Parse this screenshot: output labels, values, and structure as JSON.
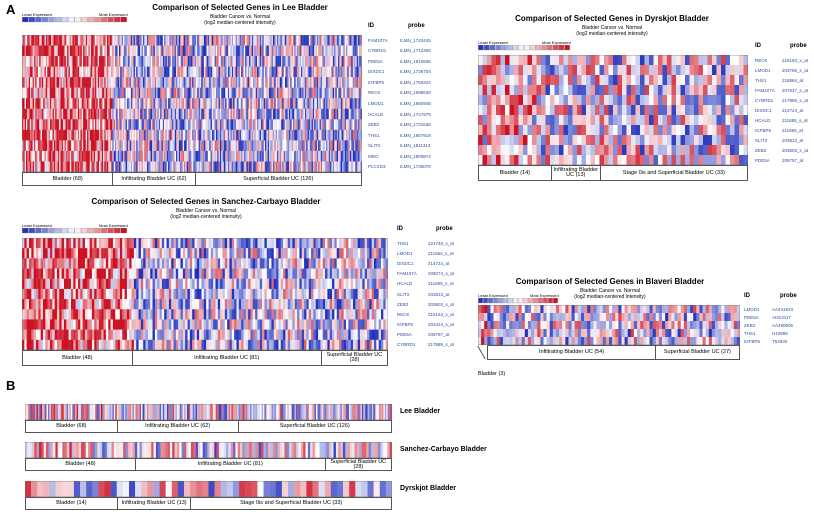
{
  "panels": {
    "a": "A",
    "b": "B"
  },
  "legend": {
    "least": "Least Expressed",
    "most": "Most Expressed"
  },
  "headers": {
    "id": "ID",
    "probe": "probe"
  },
  "subtitle": [
    "Bladder Cancer vs. Normal",
    "(log2 median-centered intensity)"
  ],
  "chart_data": [
    {
      "type": "heatmap",
      "title": "Comparison of Selected Genes in Lee Bladder",
      "colors": {
        "low": "#2233bb",
        "mid": "#ffffff",
        "high": "#cc1122"
      },
      "genes": [
        "FAM107A",
        "CYBRD1",
        "PDE5A",
        "DIXDC1",
        "IGFBP5",
        "RECK",
        "LMOD1",
        "HCALD",
        "ZEB2",
        "THS1",
        "SLIT3",
        "MRO",
        "PLCXD3"
      ],
      "probes": [
        "ILMN_1743445",
        "ILMN_1712305",
        "ILMN_1810836",
        "ILMN_1736704",
        "ILMN_1750324",
        "ILMN_1688630",
        "ILMN_1680948",
        "ILMN_1747979",
        "ILMN_1731538",
        "ILMN_1807919",
        "ILMN_1811313",
        "ILMN_1800874",
        "ILMN_1736070"
      ],
      "groups": [
        {
          "label": "Bladder (68)",
          "n": 68
        },
        {
          "label": "Infiltrating Bladder UC (62)",
          "n": 62
        },
        {
          "label": "Superficial Bladder UC (126)",
          "n": 126
        }
      ]
    },
    {
      "type": "heatmap",
      "title": "Comparison of Selected Genes in Dyrskjot Bladder",
      "genes": [
        "RECK",
        "LMOD1",
        "THS1",
        "FAM107A",
        "CYBRD1",
        "DIXDC1",
        "HCALD",
        "IGFBP5",
        "SLIT3",
        "ZEB2",
        "PDE5A"
      ],
      "probes": [
        "216153_x_at",
        "203766_s_at",
        "218864_at",
        "207547_s_at",
        "217889_s_at",
        "214724_at",
        "211685_s_at",
        "211959_at",
        "203812_at",
        "203603_s_at",
        "206757_at"
      ],
      "groups": [
        {
          "label": "Bladder (14)",
          "n": 14
        },
        {
          "label": "Infiltrating Bladder UC (13)",
          "n": 13
        },
        {
          "label": "Stage 0is and Superficial Bladder UC (33)",
          "n": 33
        }
      ]
    },
    {
      "type": "heatmap",
      "title": "Comparison of Selected Genes in Sanchez-Carbayo Bladder",
      "genes": [
        "THS1",
        "LMOD1",
        "DIXDC1",
        "FAM107A",
        "HCALD",
        "SLIT3",
        "ZEB2",
        "RECK",
        "IGFBP5",
        "PDE5A",
        "CYBRD1"
      ],
      "probes": [
        "221748_s_at",
        "211562_s_at",
        "214724_at",
        "209074_s_at",
        "211685_s_at",
        "203813_at",
        "203603_s_at",
        "216153_x_at",
        "203424_s_at",
        "206757_at",
        "217889_s_at"
      ],
      "groups": [
        {
          "label": "Bladder (48)",
          "n": 48
        },
        {
          "label": "Infiltrating Bladder UC (81)",
          "n": 81
        },
        {
          "label": "Superficial Bladder UC (28)",
          "n": 28
        }
      ]
    },
    {
      "type": "heatmap",
      "title": "Comparison of Selected Genes in Blaveri Bladder",
      "genes": [
        "LMOD1",
        "PDE5A",
        "ZEB2",
        "THS1",
        "IGFBP5"
      ],
      "probes": [
        "AA441933",
        "AI313117",
        "AA490605",
        "H10988",
        "T52830"
      ],
      "groups": [
        {
          "label": "Bladder (3)",
          "n": 3
        },
        {
          "label": "Infiltrating Bladder UC (54)",
          "n": 54
        },
        {
          "label": "Superficial Bladder UC (27)",
          "n": 27
        }
      ]
    }
  ],
  "strips": [
    {
      "label": "Lee Bladder",
      "groups": [
        "Bladder (68)",
        "Infiltrating Bladder UC (62)",
        "Superficial Bladder UC (126)"
      ]
    },
    {
      "label": "Sanchez-Carbayo Bladder",
      "groups": [
        "Bladder (48)",
        "Infiltrating Bladder UC (81)",
        "Superficial Bladder UC (28)"
      ]
    },
    {
      "label": "Dyrskjot Bladder",
      "groups": [
        "Bladder (14)",
        "Infiltrating Bladder UC (13)",
        "Stage 0is and Superficial Bladder UC (33)"
      ]
    }
  ]
}
